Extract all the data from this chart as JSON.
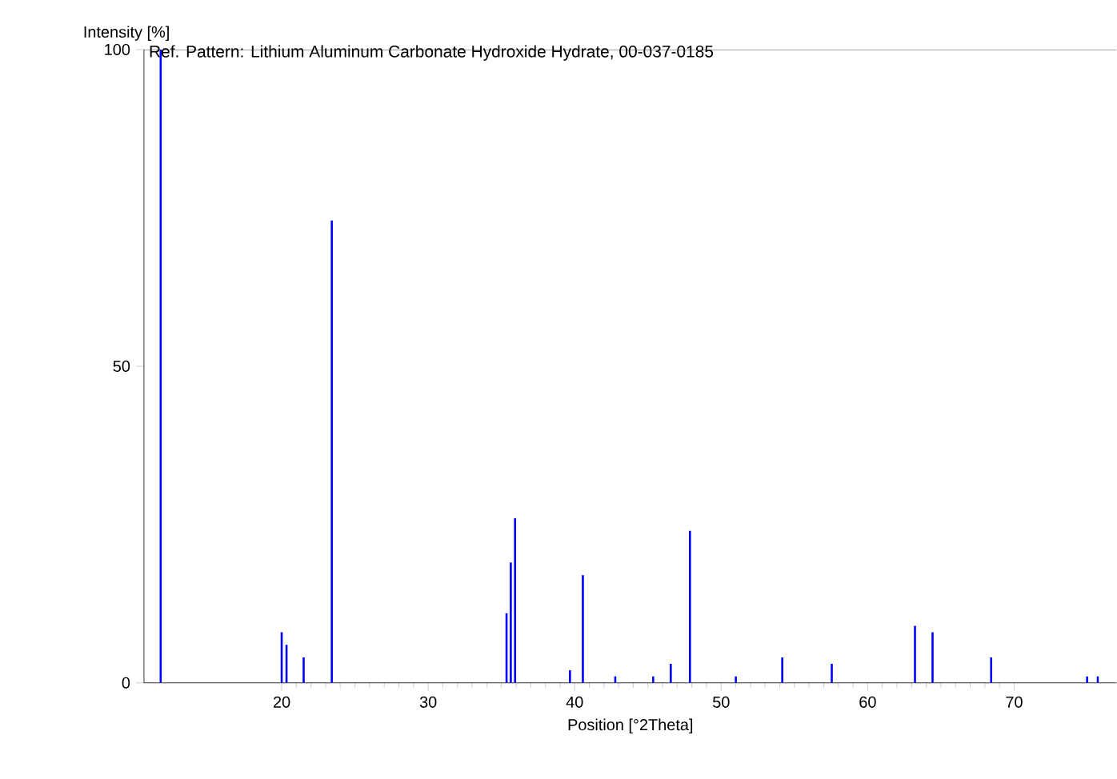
{
  "chart_data": {
    "type": "bar",
    "title": "Ref. Pattern: Lithium Aluminum Carbonate Hydroxide Hydrate, 00-037-0185",
    "xlabel": "Position [°2Theta]",
    "ylabel": "Intensity [%]",
    "x": [
      11.74,
      20.0,
      20.33,
      21.5,
      23.42,
      35.35,
      35.64,
      35.93,
      39.68,
      40.56,
      42.77,
      45.36,
      46.56,
      47.87,
      51.0,
      54.17,
      57.55,
      63.23,
      64.43,
      68.43,
      74.98,
      75.71
    ],
    "values": [
      100,
      8,
      6,
      4,
      73,
      11,
      19,
      26,
      2,
      17,
      1,
      1,
      3,
      24,
      1,
      4,
      3,
      9,
      8,
      4,
      1,
      1
    ],
    "color": "#0000ff",
    "xlim": [
      10.6,
      77
    ],
    "xticks": [
      20,
      30,
      40,
      50,
      60,
      70
    ],
    "ylim": [
      0,
      100
    ],
    "yticks": [
      0,
      50,
      100
    ]
  }
}
